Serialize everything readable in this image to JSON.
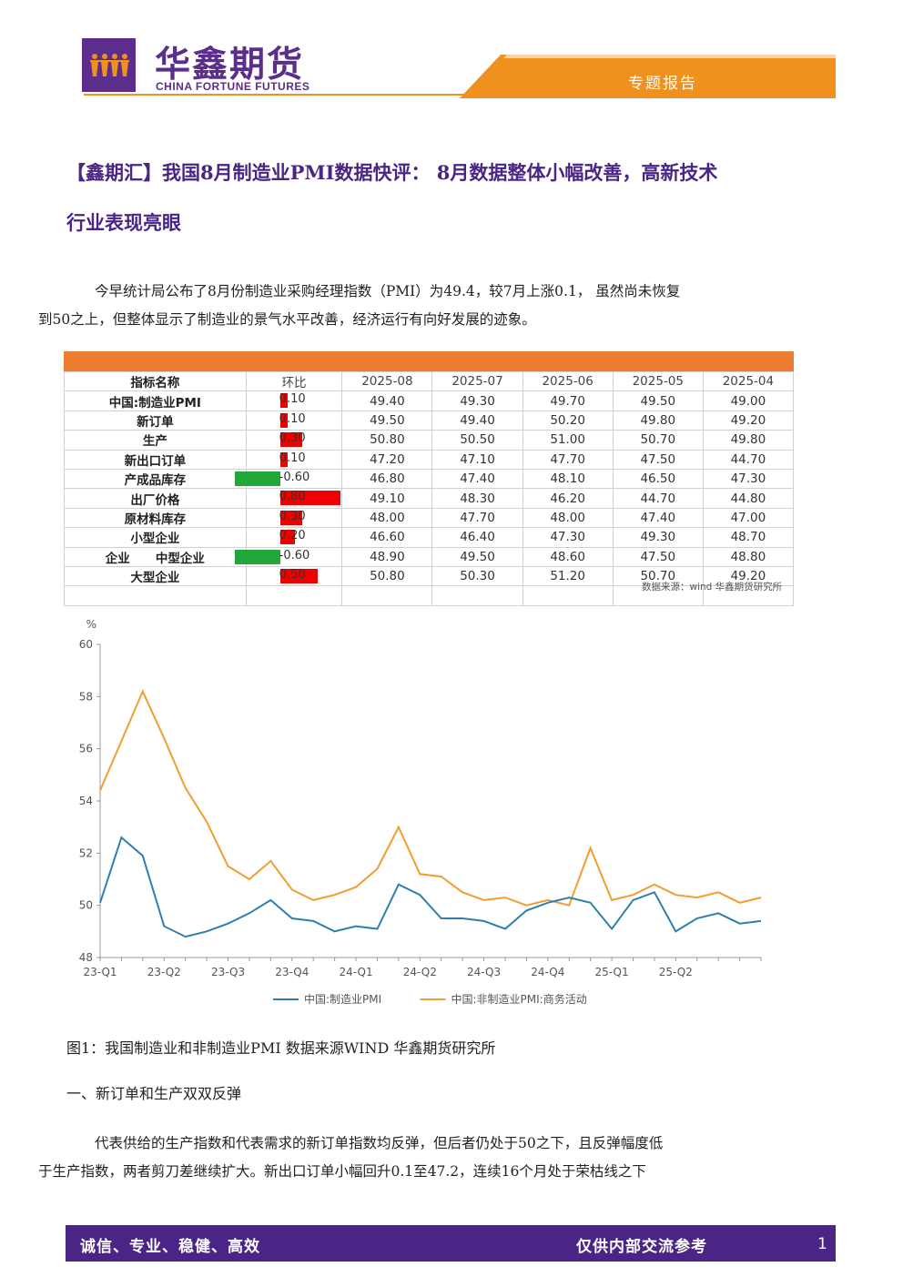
{
  "header": {
    "brand_cn": "华鑫期货",
    "brand_en": "CHINA FORTUNE FUTURES",
    "report_type": "专题报告"
  },
  "title_line1": "【鑫期汇】我国8月制造业PMI数据快评： 8月数据整体小幅改善，高新技术",
  "title_line2": "行业表现亮眼",
  "intro_line1": "今早统计局公布了8月份制造业采购经理指数（PMI）为49.4，较7月上涨0.1， 虽然尚未恢复",
  "intro_line2": "到50之上，但整体显示了制造业的景气水平改善，经济运行有向好发展的迹象。",
  "table": {
    "headers": [
      "指标名称",
      "环比",
      "2025-08",
      "2025-07",
      "2025-06",
      "2025-05",
      "2025-04"
    ],
    "rows": [
      {
        "name": "中国:制造业PMI",
        "chg": "0.10",
        "chg_val": 0.1,
        "vals": [
          "49.40",
          "49.30",
          "49.70",
          "49.50",
          "49.00"
        ]
      },
      {
        "name": "新订单",
        "chg": "0.10",
        "chg_val": 0.1,
        "vals": [
          "49.50",
          "49.40",
          "50.20",
          "49.80",
          "49.20"
        ]
      },
      {
        "name": "生产",
        "chg": "0.30",
        "chg_val": 0.3,
        "vals": [
          "50.80",
          "50.50",
          "51.00",
          "50.70",
          "49.80"
        ]
      },
      {
        "name": "新出口订单",
        "chg": "0.10",
        "chg_val": 0.1,
        "vals": [
          "47.20",
          "47.10",
          "47.70",
          "47.50",
          "44.70"
        ]
      },
      {
        "name": "产成品库存",
        "chg": "-0.60",
        "chg_val": -0.6,
        "vals": [
          "46.80",
          "47.40",
          "48.10",
          "46.50",
          "47.30"
        ]
      },
      {
        "name": "出厂价格",
        "chg": "0.80",
        "chg_val": 0.8,
        "vals": [
          "49.10",
          "48.30",
          "46.20",
          "44.70",
          "44.80"
        ]
      },
      {
        "name": "原材料库存",
        "chg": "0.30",
        "chg_val": 0.3,
        "vals": [
          "48.00",
          "47.70",
          "48.00",
          "47.40",
          "47.00"
        ]
      },
      {
        "name": "小型企业",
        "chg": "0.20",
        "chg_val": 0.2,
        "vals": [
          "46.60",
          "46.40",
          "47.30",
          "49.30",
          "48.70"
        ]
      },
      {
        "name": "企业      中型企业",
        "chg": "-0.60",
        "chg_val": -0.6,
        "vals": [
          "48.90",
          "49.50",
          "48.60",
          "47.50",
          "48.80"
        ]
      },
      {
        "name": "大型企业",
        "chg": "0.50",
        "chg_val": 0.5,
        "vals": [
          "50.80",
          "50.30",
          "51.20",
          "50.70",
          "49.20"
        ]
      }
    ],
    "source": "数据来源：wind 华鑫期货研究所"
  },
  "chart_data": {
    "type": "line",
    "ylabel": "%",
    "ylim": [
      48,
      60
    ],
    "yticks": [
      48,
      50,
      52,
      54,
      56,
      58,
      60
    ],
    "x_tick_labels": [
      "23-Q1",
      "23-Q2",
      "23-Q3",
      "23-Q4",
      "24-Q1",
      "24-Q2",
      "24-Q3",
      "24-Q4",
      "25-Q1",
      "25-Q2"
    ],
    "x": [
      "2023-01",
      "2023-02",
      "2023-03",
      "2023-04",
      "2023-05",
      "2023-06",
      "2023-07",
      "2023-08",
      "2023-09",
      "2023-10",
      "2023-11",
      "2023-12",
      "2024-01",
      "2024-02",
      "2024-03",
      "2024-04",
      "2024-05",
      "2024-06",
      "2024-07",
      "2024-08",
      "2024-09",
      "2024-10",
      "2024-11",
      "2024-12",
      "2025-01",
      "2025-02",
      "2025-03",
      "2025-04",
      "2025-05",
      "2025-06",
      "2025-07",
      "2025-08"
    ],
    "series": [
      {
        "name": "中国:制造业PMI",
        "color": "#2e7fad",
        "values": [
          50.1,
          52.6,
          51.9,
          49.2,
          48.8,
          49.0,
          49.3,
          49.7,
          50.2,
          49.5,
          49.4,
          49.0,
          49.2,
          49.1,
          50.8,
          50.4,
          49.5,
          49.5,
          49.4,
          49.1,
          49.8,
          50.1,
          50.3,
          50.1,
          49.1,
          50.2,
          50.5,
          49.0,
          49.5,
          49.7,
          49.3,
          49.4
        ]
      },
      {
        "name": "中国:非制造业PMI:商务活动",
        "color": "#f39c30",
        "values": [
          54.4,
          56.3,
          58.2,
          56.4,
          54.5,
          53.2,
          51.5,
          51.0,
          51.7,
          50.6,
          50.2,
          50.4,
          50.7,
          51.4,
          53.0,
          51.2,
          51.1,
          50.5,
          50.2,
          50.3,
          50.0,
          50.2,
          50.0,
          52.2,
          50.2,
          50.4,
          50.8,
          50.4,
          50.3,
          50.5,
          50.1,
          50.3
        ]
      }
    ]
  },
  "caption": "图1：我国制造业和非制造业PMI  数据来源WIND 华鑫期货研究所",
  "section1_title": "一、新订单和生产双双反弹",
  "section1_line1": "代表供给的生产指数和代表需求的新订单指数均反弹，但后者仍处于50之下，且反弹幅度低",
  "section1_line2": "于生产指数，两者剪刀差继续扩大。新出口订单小幅回升0.1至47.2，连续16个月处于荣枯线之下",
  "footer": {
    "left": "诚信、专业、稳健、高效",
    "right": "仅供内部交流参考",
    "page": "1"
  }
}
